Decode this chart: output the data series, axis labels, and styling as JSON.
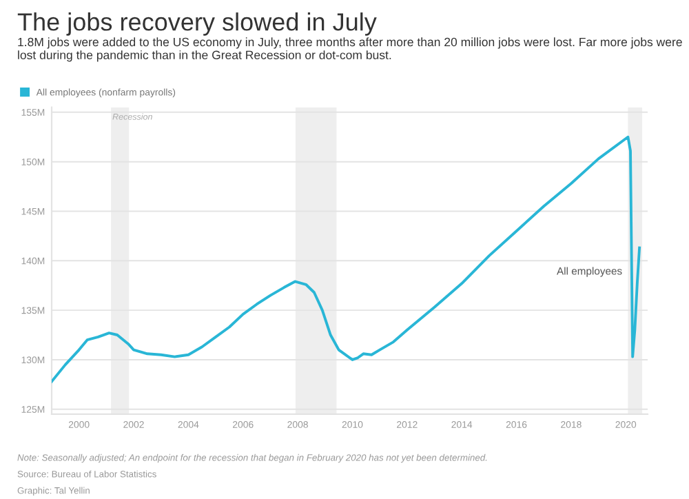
{
  "chart_data": {
    "type": "line",
    "title": "The jobs recovery slowed in July",
    "subtitle": "1.8M jobs were added to the US economy in July, three months after more than 20 million jobs were lost. Far more jobs were lost during the pandemic than in the Great Recession or dot-com bust.",
    "x": [
      1999.0,
      1999.5,
      2000.0,
      2000.3,
      2000.7,
      2001.1,
      2001.4,
      2001.8,
      2002.0,
      2002.5,
      2003.0,
      2003.5,
      2004.0,
      2004.5,
      2005.0,
      2005.5,
      2006.0,
      2006.5,
      2007.0,
      2007.5,
      2007.9,
      2008.3,
      2008.6,
      2008.9,
      2009.2,
      2009.5,
      2010.0,
      2010.2,
      2010.4,
      2010.7,
      2011.0,
      2011.5,
      2012.0,
      2013.0,
      2014.0,
      2015.0,
      2016.0,
      2017.0,
      2018.0,
      2019.0,
      2020.08,
      2020.17,
      2020.25,
      2020.33,
      2020.42,
      2020.5
    ],
    "series": [
      {
        "name": "All employees (nonfarm payrolls)",
        "color": "#29b6d6",
        "values": [
          127.8,
          129.5,
          131.0,
          132.0,
          132.3,
          132.7,
          132.5,
          131.6,
          131.0,
          130.6,
          130.5,
          130.3,
          130.5,
          131.3,
          132.3,
          133.3,
          134.6,
          135.6,
          136.5,
          137.3,
          137.9,
          137.6,
          136.8,
          135.0,
          132.5,
          131.0,
          130.0,
          130.2,
          130.6,
          130.5,
          131.0,
          131.8,
          133.0,
          135.3,
          137.7,
          140.5,
          143.0,
          145.5,
          147.8,
          150.3,
          152.5,
          151.1,
          130.3,
          133.0,
          137.8,
          141.3
        ]
      }
    ],
    "xlim": [
      1999.0,
      2020.8
    ],
    "ylim": [
      124.5,
      155.5
    ],
    "xticks": [
      2000,
      2002,
      2004,
      2006,
      2008,
      2010,
      2012,
      2014,
      2016,
      2018,
      2020
    ],
    "yticks": [
      {
        "value": 125,
        "label": "125M"
      },
      {
        "value": 130,
        "label": "130M"
      },
      {
        "value": 135,
        "label": "135M"
      },
      {
        "value": 140,
        "label": "140M"
      },
      {
        "value": 145,
        "label": "145M"
      },
      {
        "value": 150,
        "label": "150M"
      },
      {
        "value": 155,
        "label": "155M"
      }
    ],
    "bands": [
      {
        "axis": "x",
        "from": 2001.17,
        "to": 2001.83,
        "label": "Recession",
        "color": "#eeeeee"
      },
      {
        "axis": "x",
        "from": 2007.92,
        "to": 2009.42,
        "color": "#eeeeee"
      },
      {
        "axis": "x",
        "from": 2020.08,
        "to": 2020.6,
        "color": "#eeeeee"
      }
    ],
    "annotations": [
      {
        "text": "All employees",
        "x": 2020.5,
        "y": 141.3
      },
      "Note: Seasonally adjusted; An endpoint for the recession that began in February 2020 has not yet been determined.",
      "Source: Bureau of Labor Statistics",
      "Graphic: Tal Yellin"
    ],
    "grid": "y",
    "legend": "top left",
    "marker": "none",
    "line_style": "solid"
  }
}
